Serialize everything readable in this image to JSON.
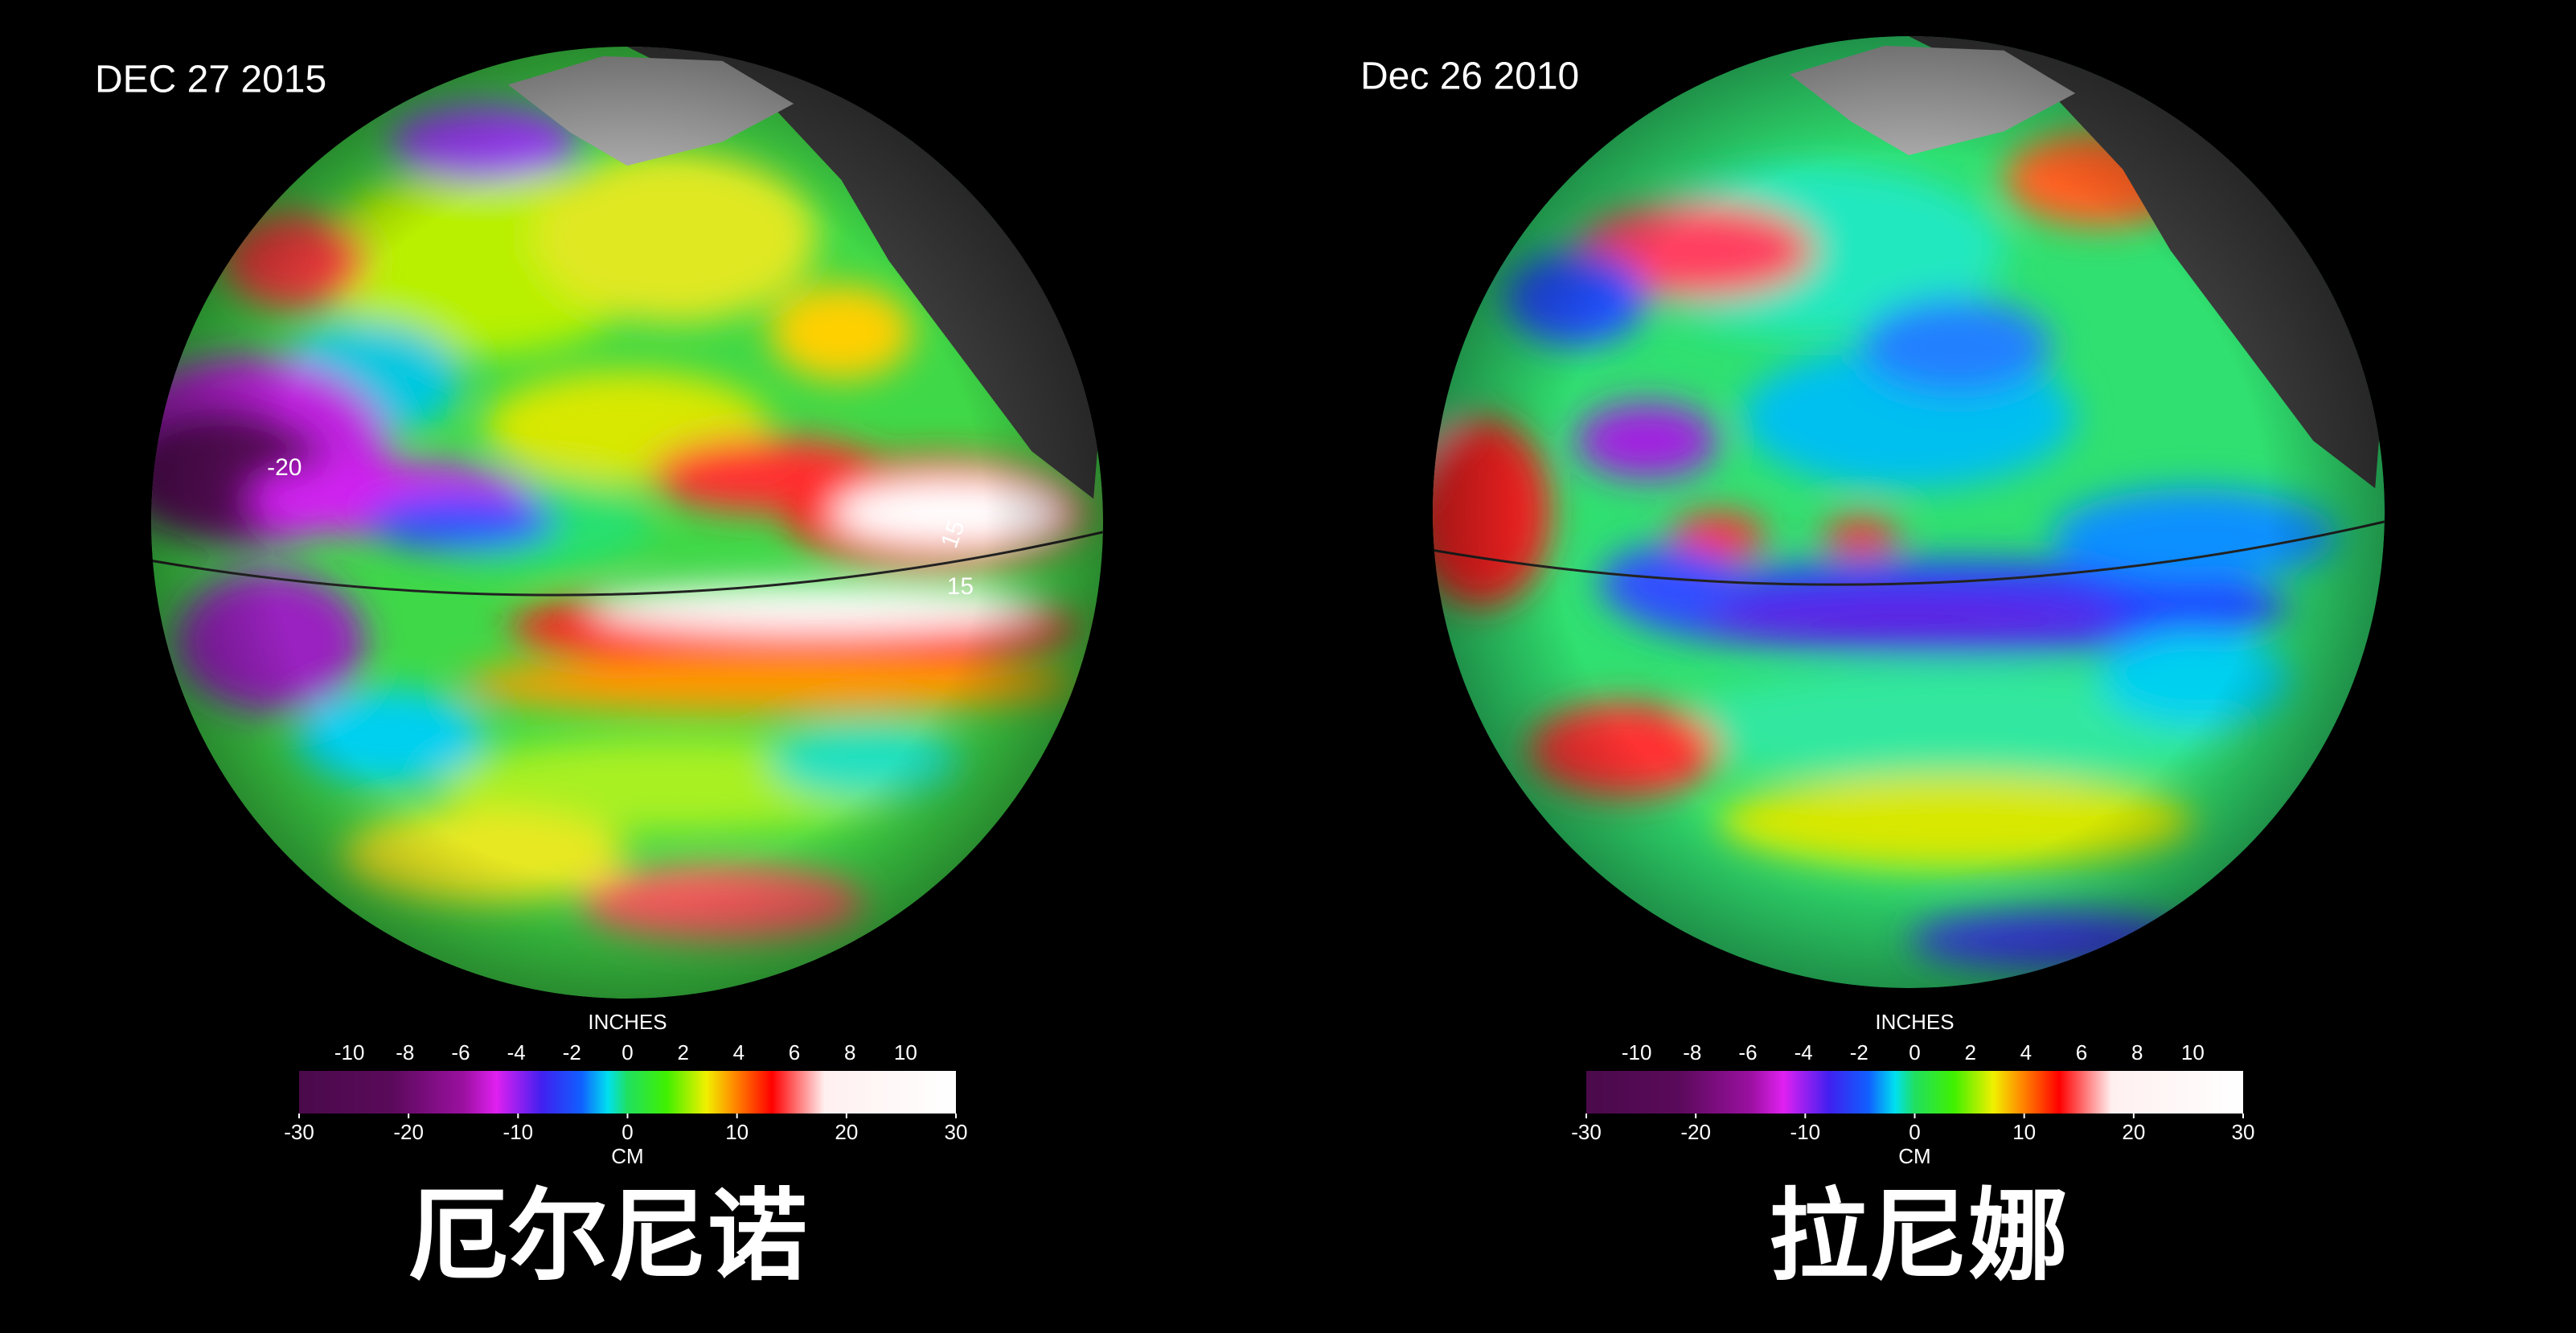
{
  "panels": [
    {
      "date": "DEC 27  2015",
      "title": "厄尔尼诺",
      "colorbar": {
        "top_label": "INCHES",
        "bottom_label": "CM",
        "inch_ticks": [
          -10,
          -8,
          -6,
          -4,
          -2,
          0,
          2,
          4,
          6,
          8,
          10
        ],
        "cm_ticks": [
          -30,
          -20,
          -10,
          0,
          10,
          20,
          30
        ]
      },
      "contour_labels": [
        "-20",
        "15",
        "15"
      ]
    },
    {
      "date": "Dec 26 2010",
      "title": "拉尼娜",
      "colorbar": {
        "top_label": "INCHES",
        "bottom_label": "CM",
        "inch_ticks": [
          -10,
          -8,
          -6,
          -4,
          -2,
          0,
          2,
          4,
          6,
          8,
          10
        ],
        "cm_ticks": [
          -30,
          -20,
          -10,
          0,
          10,
          20,
          30
        ]
      },
      "contour_labels": []
    }
  ]
}
